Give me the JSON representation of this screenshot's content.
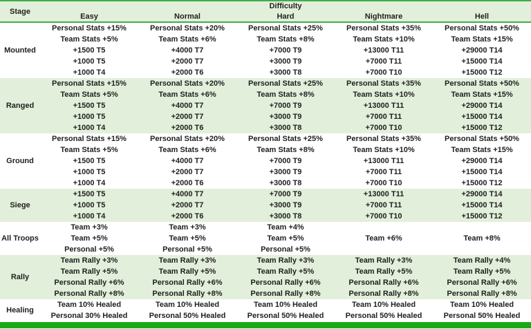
{
  "table": {
    "stage_header": "Stage",
    "difficulty_header": "Difficulty",
    "difficulty_levels": [
      "Easy",
      "Normal",
      "Hard",
      "Nightmare",
      "Hell"
    ],
    "sections": [
      {
        "stage": "Mounted",
        "shaded": false,
        "columns": [
          [
            "Personal Stats +15%",
            "Team Stats +5%",
            "+1500 T5",
            "+1000 T5",
            "+1000 T4"
          ],
          [
            "Personal Stats +20%",
            "Team Stats +6%",
            "+4000 T7",
            "+2000 T7",
            "+2000 T6"
          ],
          [
            "Personal Stats +25%",
            "Team Stats +8%",
            "+7000 T9",
            "+3000 T9",
            "+3000 T8"
          ],
          [
            "Personal Stats +35%",
            "Team Stats +10%",
            "+13000 T11",
            "+7000 T11",
            "+7000 T10"
          ],
          [
            "Personal Stats +50%",
            "Team Stats +15%",
            "+29000 T14",
            "+15000 T14",
            "+15000 T12"
          ]
        ]
      },
      {
        "stage": "Ranged",
        "shaded": true,
        "columns": [
          [
            "Personal Stats +15%",
            "Team Stats +5%",
            "+1500 T5",
            "+1000 T5",
            "+1000 T4"
          ],
          [
            "Personal Stats +20%",
            "Team Stats +6%",
            "+4000 T7",
            "+2000 T7",
            "+2000 T6"
          ],
          [
            "Personal Stats +25%",
            "Team Stats +8%",
            "+7000 T9",
            "+3000 T9",
            "+3000 T8"
          ],
          [
            "Personal Stats +35%",
            "Team Stats +10%",
            "+13000 T11",
            "+7000 T11",
            "+7000 T10"
          ],
          [
            "Personal Stats +50%",
            "Team Stats +15%",
            "+29000 T14",
            "+15000 T14",
            "+15000 T12"
          ]
        ]
      },
      {
        "stage": "Ground",
        "shaded": false,
        "columns": [
          [
            "Personal Stats +15%",
            "Team Stats +5%",
            "+1500 T5",
            "+1000 T5",
            "+1000 T4"
          ],
          [
            "Personal Stats +20%",
            "Team Stats +6%",
            "+4000 T7",
            "+2000 T7",
            "+2000 T6"
          ],
          [
            "Personal Stats +25%",
            "Team Stats +8%",
            "+7000 T9",
            "+3000 T9",
            "+3000 T8"
          ],
          [
            "Personal Stats +35%",
            "Team Stats +10%",
            "+13000 T11",
            "+7000 T11",
            "+7000 T10"
          ],
          [
            "Personal Stats +50%",
            "Team Stats +15%",
            "+29000 T14",
            "+15000 T14",
            "+15000 T12"
          ]
        ]
      },
      {
        "stage": "Siege",
        "shaded": true,
        "columns": [
          [
            "+1500 T5",
            "+1000 T5",
            "+1000 T4"
          ],
          [
            "+4000 T7",
            "+2000 T7",
            "+2000 T6"
          ],
          [
            "+7000 T9",
            "+3000 T9",
            "+3000 T8"
          ],
          [
            "+13000 T11",
            "+7000 T11",
            "+7000 T10"
          ],
          [
            "+29000 T14",
            "+15000 T14",
            "+15000 T12"
          ]
        ]
      },
      {
        "stage": "All Troops",
        "shaded": false,
        "columns": [
          [
            "Team +3%",
            "Team +5%",
            "Personal +5%"
          ],
          [
            "Team +3%",
            "Team +5%",
            "Personal +5%"
          ],
          [
            "Team +4%",
            "Team +5%",
            "Personal +5%"
          ],
          [
            "",
            "Team +6%",
            ""
          ],
          [
            "",
            "Team +8%",
            ""
          ]
        ]
      },
      {
        "stage": "Rally",
        "shaded": true,
        "columns": [
          [
            "Team Rally +3%",
            "Team Rally +5%",
            "Personal Rally +6%",
            "Personal Rally +8%"
          ],
          [
            "Team Rally +3%",
            "Team Rally +5%",
            "Personal Rally +6%",
            "Personal Rally +8%"
          ],
          [
            "Team Rally +3%",
            "Team Rally +5%",
            "Personal Rally +6%",
            "Personal Rally +8%"
          ],
          [
            "Team Rally +3%",
            "Team Rally +5%",
            "Personal Rally +6%",
            "Personal Rally +8%"
          ],
          [
            "Team Rally +4%",
            "Team Rally +5%",
            "Personal Rally +6%",
            "Personal Rally +8%"
          ]
        ]
      },
      {
        "stage": "Healing",
        "shaded": false,
        "columns": [
          [
            "Team 10% Healed",
            "Personal 30% Healed"
          ],
          [
            "Team 10% Healed",
            "Personal 50% Healed"
          ],
          [
            "Team 10% Healed",
            "Personal 50% Healed"
          ],
          [
            "Team 10% Healed",
            "Personal 50% Healed"
          ],
          [
            "Team 10% Healed",
            "Personal 50% Healed"
          ]
        ]
      }
    ]
  },
  "colors": {
    "shaded_row_bg": "#e2efda",
    "header_bg": "#e2efda",
    "rule_green": "#3fae49",
    "bottom_bar_green": "#18a918",
    "text": "#1f1f1f"
  }
}
